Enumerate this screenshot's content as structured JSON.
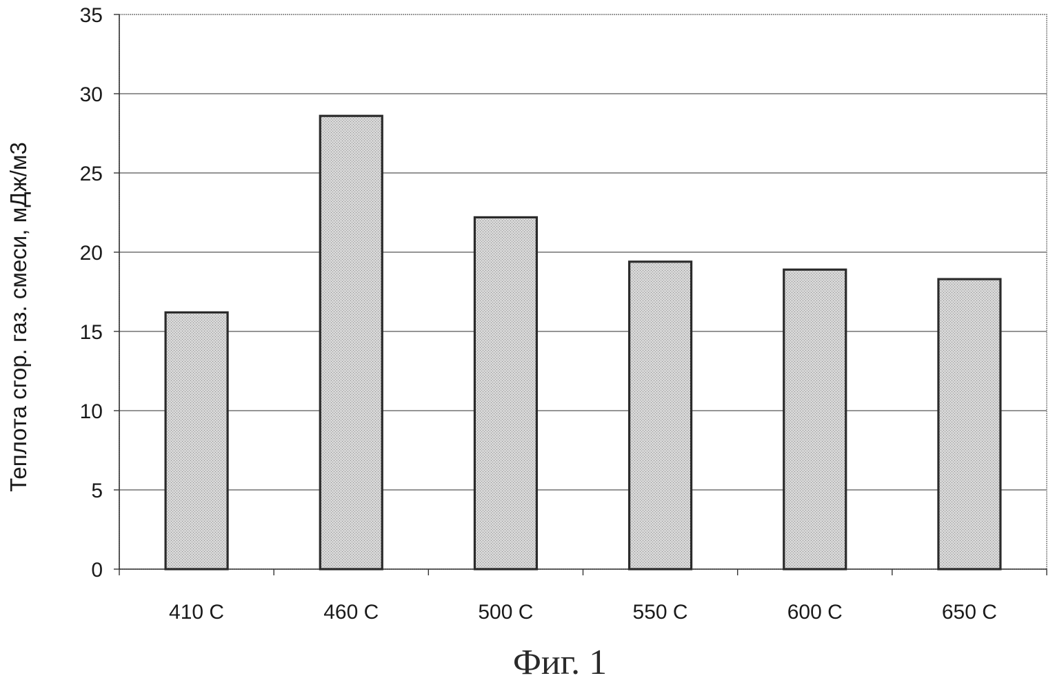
{
  "chart_data": {
    "type": "bar",
    "categories": [
      "410 C",
      "460 C",
      "500 C",
      "550 C",
      "600 C",
      "650 C"
    ],
    "values": [
      16.2,
      28.6,
      22.2,
      19.4,
      18.9,
      18.3
    ],
    "title": "",
    "xlabel": "",
    "ylabel": "Теплота сгор. газ. смеси, мДж/м3",
    "ylim": [
      0,
      35
    ],
    "yticks": [
      "0",
      "5",
      "10",
      "15",
      "20",
      "25",
      "30",
      "35"
    ],
    "grid": "horizontal",
    "legend": "none",
    "bar_color": "#d4d4d4",
    "bar_edge_color": "#2b2b2b"
  },
  "figure": {
    "caption": "Фиг. 1"
  }
}
